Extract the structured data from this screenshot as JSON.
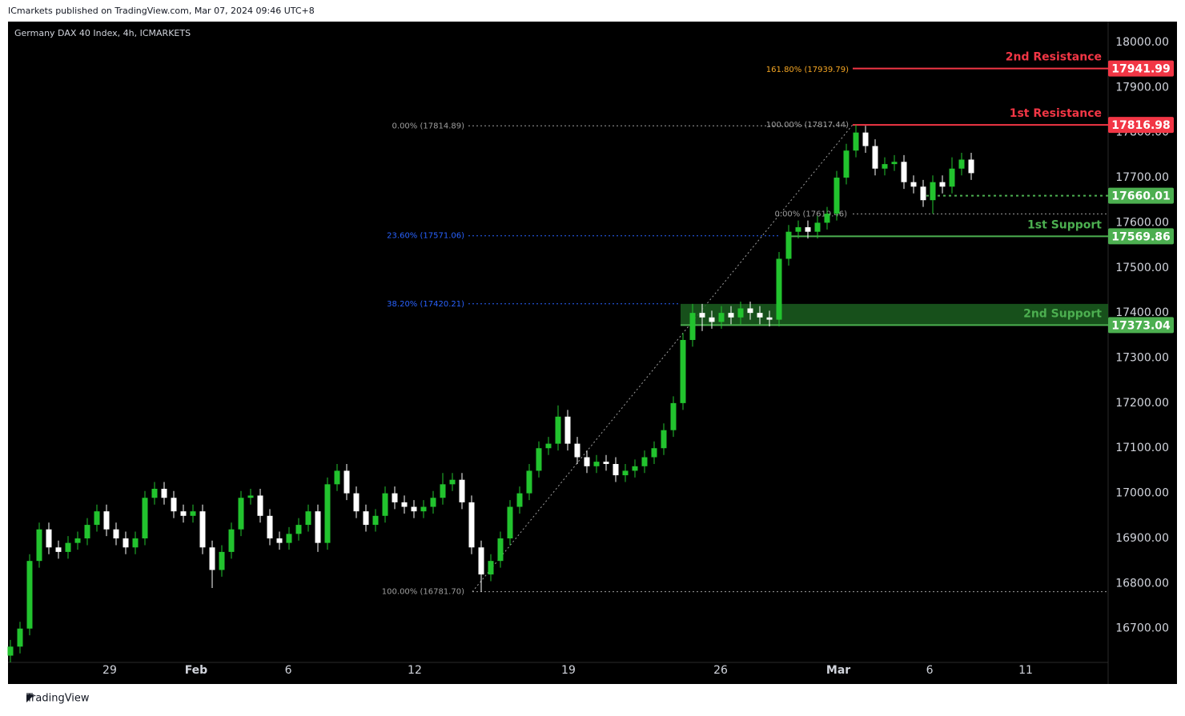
{
  "header": {
    "publisher": "ICmarkets published on TradingView.com, Mar 07, 2024 09:46 UTC+8",
    "footer": "TradingView"
  },
  "chart_data": {
    "type": "candlestick",
    "title": "Germany DAX 40 Index, 4h, ICMARKETS",
    "up_color": "#22c32e",
    "down_color": "#ffffff",
    "open": [
      16640,
      16660,
      16700,
      16850,
      16920,
      16880,
      16870,
      16890,
      16900,
      16930,
      16960,
      16920,
      16900,
      16880,
      16900,
      16990,
      17010,
      16990,
      16960,
      16950,
      16960,
      16880,
      16830,
      16870,
      16920,
      16990,
      16995,
      16950,
      16900,
      16890,
      16910,
      16930,
      16960,
      16890,
      17020,
      17050,
      17000,
      16960,
      16930,
      16950,
      17000,
      16980,
      16970,
      16960,
      16970,
      16990,
      17020,
      17030,
      16980,
      16880,
      16820,
      16850,
      16900,
      16970,
      17000,
      17050,
      17100,
      17110,
      17170,
      17110,
      17080,
      17060,
      17070,
      17065,
      17040,
      17050,
      17060,
      17080,
      17100,
      17140,
      17200,
      17340,
      17400,
      17390,
      17380,
      17400,
      17390,
      17410,
      17400,
      17390,
      17385,
      17520,
      17580,
      17590,
      17580,
      17600,
      17620,
      17700,
      17760,
      17800,
      17770,
      17720,
      17730,
      17735,
      17690,
      17680,
      17650,
      17690,
      17680,
      17720,
      17740
    ],
    "high": [
      16675,
      16715,
      16865,
      16935,
      16935,
      16895,
      16905,
      16915,
      16945,
      16975,
      16975,
      16935,
      16915,
      16915,
      17005,
      17025,
      17025,
      17005,
      16975,
      16975,
      16975,
      16895,
      16885,
      16935,
      17005,
      17010,
      17010,
      16965,
      16915,
      16925,
      16945,
      16975,
      16975,
      17035,
      17065,
      17065,
      17015,
      16975,
      16965,
      17015,
      17015,
      16995,
      16985,
      16985,
      17005,
      17045,
      17045,
      17045,
      16995,
      16895,
      16865,
      16915,
      16985,
      17015,
      17065,
      17115,
      17125,
      17195,
      17185,
      17125,
      17095,
      17085,
      17085,
      17080,
      17065,
      17075,
      17095,
      17115,
      17155,
      17215,
      17355,
      17420,
      17420,
      17405,
      17415,
      17415,
      17425,
      17425,
      17415,
      17405,
      17535,
      17595,
      17605,
      17605,
      17615,
      17635,
      17715,
      17775,
      17817.44,
      17815,
      17785,
      17745,
      17750,
      17750,
      17705,
      17695,
      17705,
      17705,
      17745,
      17755,
      17755
    ],
    "low": [
      16625,
      16645,
      16685,
      16835,
      16865,
      16855,
      16855,
      16875,
      16885,
      16915,
      16905,
      16885,
      16865,
      16865,
      16885,
      16975,
      16975,
      16945,
      16935,
      16935,
      16865,
      16790,
      16815,
      16855,
      16905,
      16975,
      16935,
      16885,
      16875,
      16875,
      16895,
      16915,
      16870,
      16875,
      17005,
      16985,
      16945,
      16915,
      16915,
      16935,
      16965,
      16955,
      16945,
      16945,
      16955,
      16975,
      17005,
      16965,
      16865,
      16781.7,
      16805,
      16835,
      16885,
      16955,
      16985,
      17035,
      17085,
      17095,
      17095,
      17065,
      17045,
      17045,
      17050,
      17025,
      17025,
      17035,
      17045,
      17065,
      17085,
      17125,
      17185,
      17325,
      17360,
      17365,
      17365,
      17375,
      17375,
      17385,
      17375,
      17370,
      17370,
      17505,
      17565,
      17565,
      17565,
      17585,
      17605,
      17685,
      17745,
      17755,
      17705,
      17705,
      17715,
      17675,
      17665,
      17635,
      17620,
      17665,
      17665,
      17705,
      17695
    ],
    "close": [
      16660,
      16700,
      16850,
      16920,
      16880,
      16870,
      16890,
      16900,
      16930,
      16960,
      16920,
      16900,
      16880,
      16900,
      16990,
      17010,
      16990,
      16960,
      16950,
      16960,
      16880,
      16830,
      16870,
      16920,
      16990,
      16995,
      16950,
      16900,
      16890,
      16910,
      16930,
      16960,
      16890,
      17020,
      17050,
      17000,
      16960,
      16930,
      16950,
      17000,
      16980,
      16970,
      16960,
      16970,
      16990,
      17020,
      17030,
      16980,
      16880,
      16820,
      16850,
      16900,
      16970,
      17000,
      17050,
      17100,
      17110,
      17170,
      17110,
      17080,
      17060,
      17070,
      17065,
      17040,
      17050,
      17060,
      17080,
      17100,
      17140,
      17200,
      17340,
      17400,
      17390,
      17380,
      17400,
      17390,
      17410,
      17400,
      17390,
      17385,
      17520,
      17580,
      17590,
      17580,
      17600,
      17620,
      17700,
      17760,
      17800,
      17770,
      17720,
      17730,
      17735,
      17690,
      17680,
      17650,
      17690,
      17680,
      17720,
      17740,
      17710
    ],
    "xlim": [
      -0.25,
      114.25
    ],
    "xticks": [
      {
        "value": 10.33,
        "label": "29"
      },
      {
        "value": 19.33,
        "label": "Feb"
      },
      {
        "value": 28.92,
        "label": "6"
      },
      {
        "value": 42.08,
        "label": "12"
      },
      {
        "value": 58.08,
        "label": "19"
      },
      {
        "value": 73.92,
        "label": "26"
      },
      {
        "value": 86.17,
        "label": "Mar"
      },
      {
        "value": 95.67,
        "label": "6"
      },
      {
        "value": 105.67,
        "label": "11"
      }
    ],
    "ylim": [
      16625,
      18046
    ],
    "yticks": [
      {
        "value": 16700,
        "label": "16700.00"
      },
      {
        "value": 16800,
        "label": "16800.00"
      },
      {
        "value": 16900,
        "label": "16900.00"
      },
      {
        "value": 17000,
        "label": "17000.00"
      },
      {
        "value": 17100,
        "label": "17100.00"
      },
      {
        "value": 17200,
        "label": "17200.00"
      },
      {
        "value": 17300,
        "label": "17300.00"
      },
      {
        "value": 17400,
        "label": "17400.00"
      },
      {
        "value": 17500,
        "label": "17500.00"
      },
      {
        "value": 17600,
        "label": "17600.00"
      },
      {
        "value": 17700,
        "label": "17700.00"
      },
      {
        "value": 17800,
        "label": "17800.00"
      },
      {
        "value": 17900,
        "label": "17900.00"
      },
      {
        "value": 18000,
        "label": "18000.00"
      }
    ],
    "levels": [
      {
        "name": "2nd Resistance",
        "value": 17941.99,
        "color": "#f23645"
      },
      {
        "name": "1st Resistance",
        "value": 17816.98,
        "color": "#f23645"
      },
      {
        "value": 17660.01,
        "color": "#4caf50"
      },
      {
        "name": "1st Support",
        "value": 17569.86,
        "color": "#4caf50"
      },
      {
        "name": "2nd Support",
        "value": 17373.04,
        "color": "#4caf50",
        "zone_top": 17420
      }
    ],
    "fib": [
      {
        "label": "161.80% (17939.79)",
        "value": 17939.79,
        "color": "#f5a623"
      },
      {
        "label": "0.00% (17814.89)",
        "value": 17814.89,
        "color": "#9e9e9e"
      },
      {
        "label": "100.00% (17817.44)",
        "value": 17817.44,
        "color": "#9e9e9e"
      },
      {
        "label": "0.00% (17619.46)",
        "value": 17619.46,
        "color": "#9e9e9e"
      },
      {
        "label": "23.60% (17571.06)",
        "value": 17571.06,
        "color": "#2962ff"
      },
      {
        "label": "38.20% (17420.21)",
        "value": 17420.21,
        "color": "#2962ff"
      },
      {
        "label": "100.00% (16781.70)",
        "value": 16781.7,
        "color": "#9e9e9e"
      }
    ]
  }
}
